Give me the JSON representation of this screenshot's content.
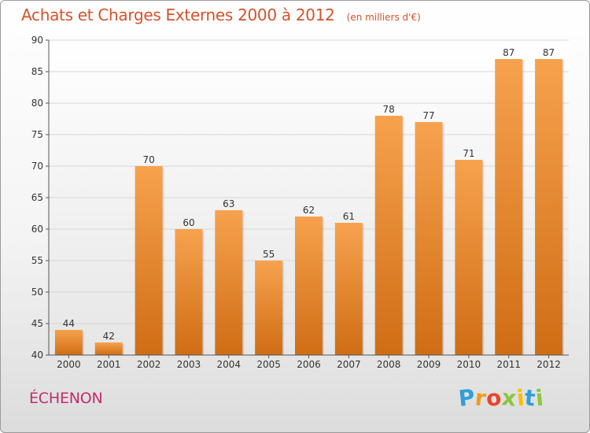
{
  "title": "Achats et Charges Externes 2000 à 2012",
  "unit": "(en milliers d'€)",
  "commune": "ÉCHENON",
  "logo": {
    "text": "Proxiti",
    "letters": [
      {
        "ch": "P",
        "color": "#2f9fd8"
      },
      {
        "ch": "r",
        "color": "#f39a1e"
      },
      {
        "ch": "o",
        "color": "#e8452c"
      },
      {
        "ch": "x",
        "color": "#8cc63f"
      },
      {
        "ch": "i",
        "color": "#f5c000"
      },
      {
        "ch": "t",
        "color": "#2f9fd8"
      },
      {
        "ch": "i",
        "color": "#8cc63f"
      }
    ]
  },
  "colors": {
    "bar_top": "#f7a24e",
    "bar_bottom": "#cf6d14",
    "axis": "#555555",
    "grid": "#d6d6d6",
    "text": "#333333"
  },
  "chart_data": {
    "type": "bar",
    "categories": [
      "2000",
      "2001",
      "2002",
      "2003",
      "2004",
      "2005",
      "2006",
      "2007",
      "2008",
      "2009",
      "2010",
      "2011",
      "2012"
    ],
    "values": [
      44,
      42,
      70,
      60,
      63,
      55,
      62,
      61,
      78,
      77,
      71,
      87,
      87
    ],
    "ylim": [
      40,
      90
    ],
    "yticks": [
      40,
      45,
      50,
      55,
      60,
      65,
      70,
      75,
      80,
      85,
      90
    ],
    "grid": true,
    "data_labels": true
  }
}
